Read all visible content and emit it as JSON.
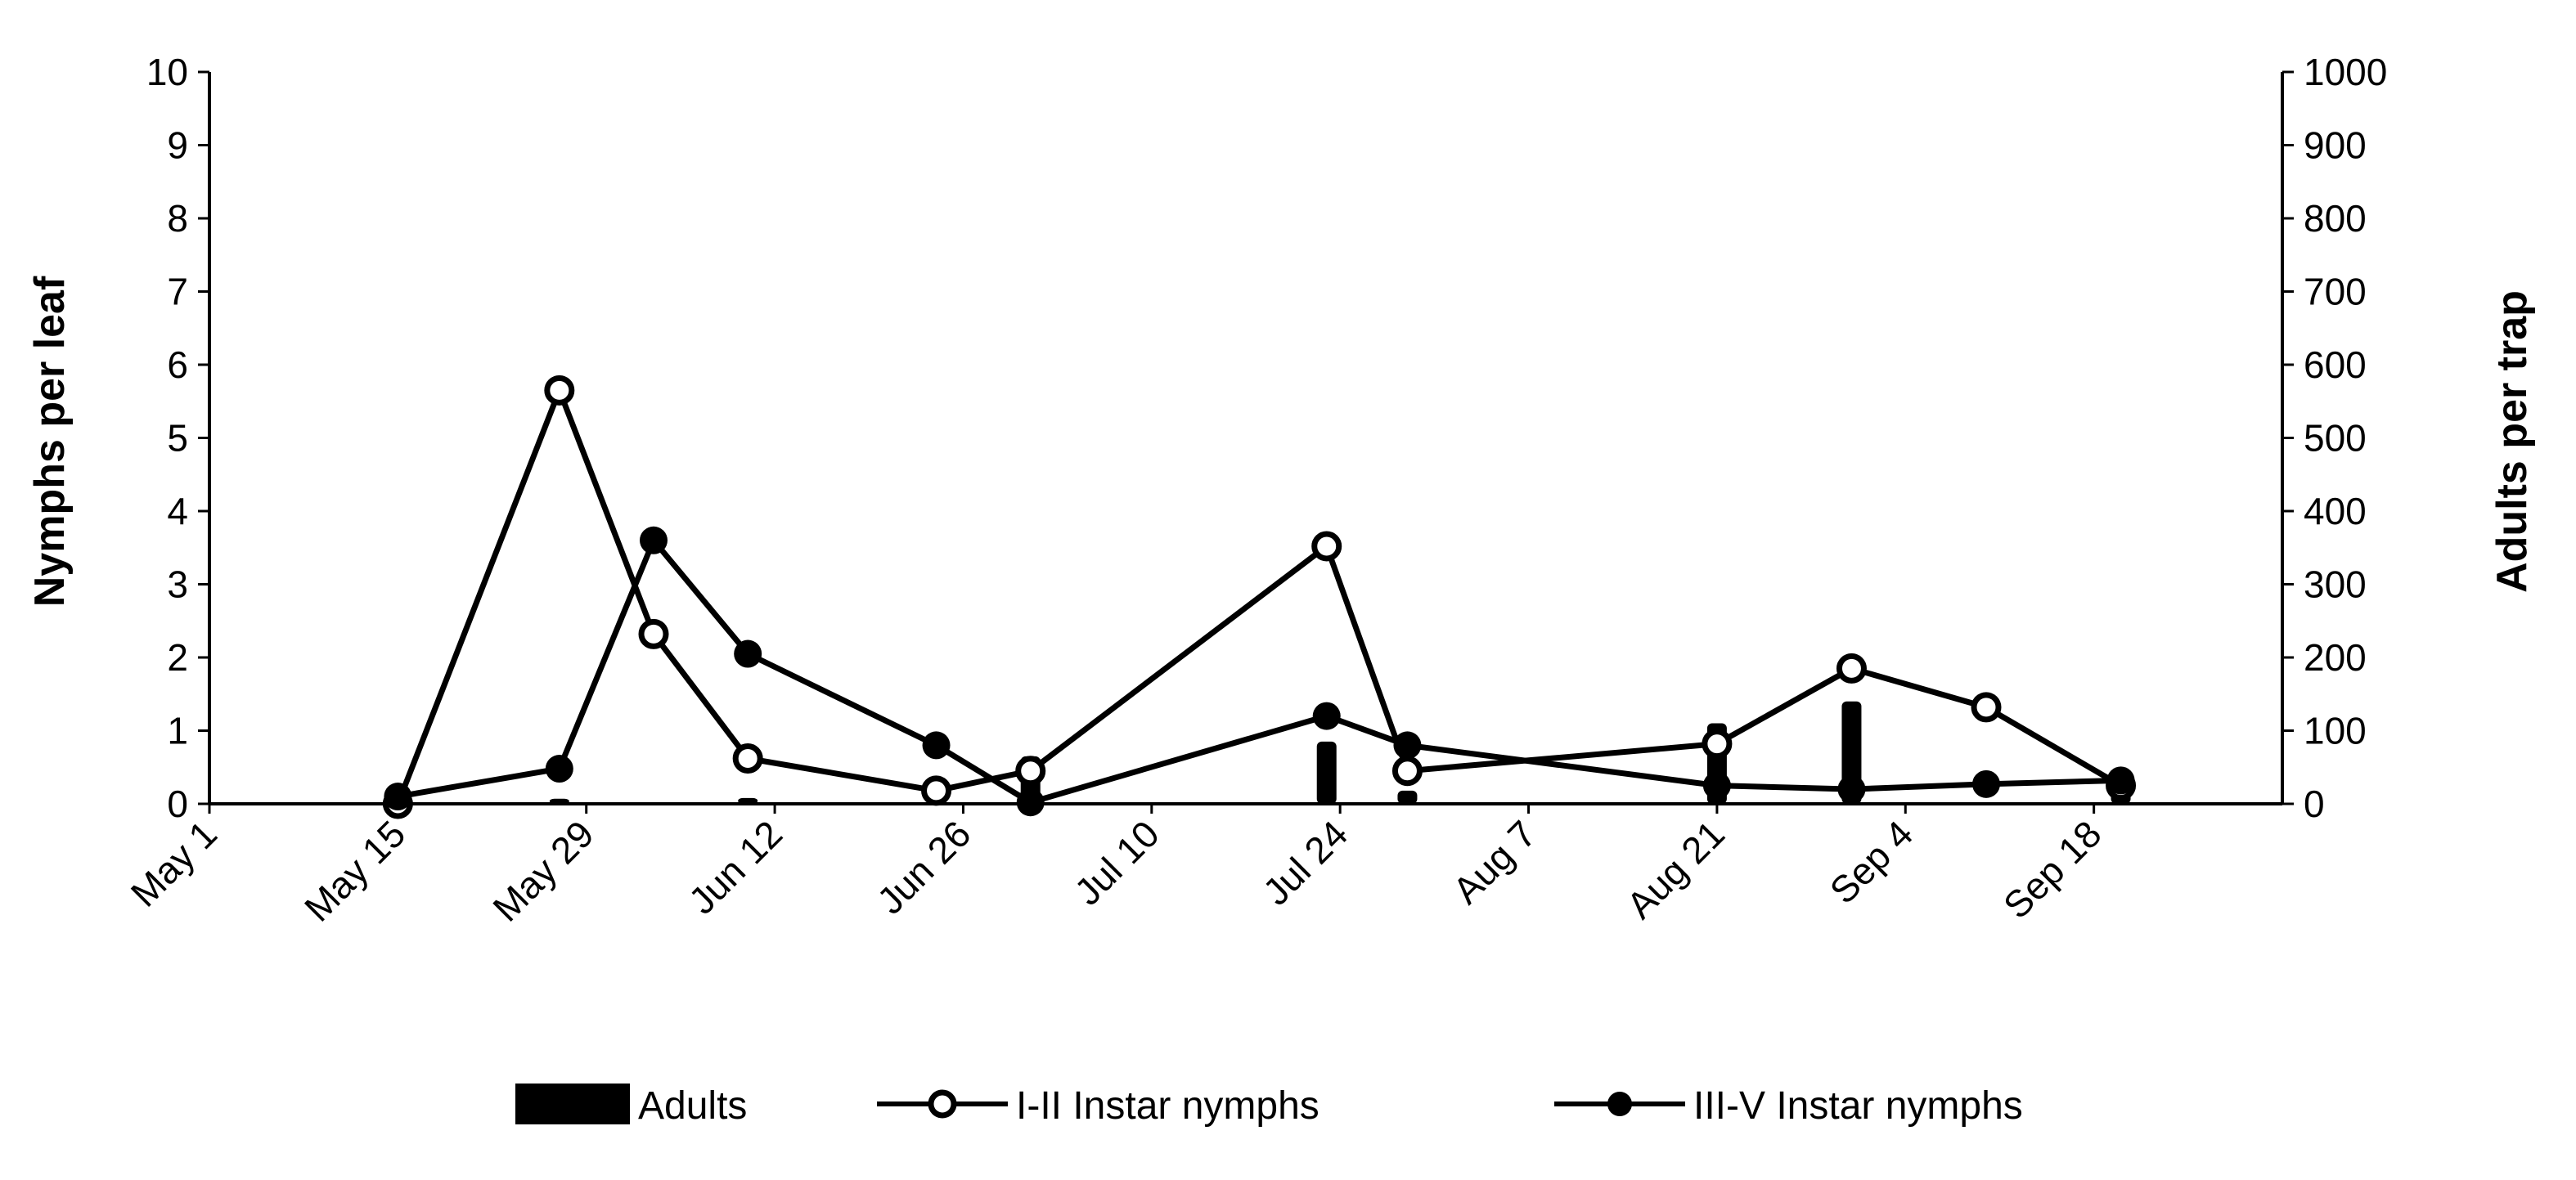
{
  "chart_data": {
    "type": "line",
    "x_tick_labels": [
      "May 1",
      "May 15",
      "May 29",
      "Jun 12",
      "Jun 26",
      "Jul 10",
      "Jul 24",
      "Aug 7",
      "Aug 21",
      "Sep 4",
      "Sep 18"
    ],
    "x_ticks_day_of_year": [
      121,
      135,
      149,
      163,
      177,
      191,
      205,
      219,
      233,
      247,
      261
    ],
    "xlim": [
      121,
      275
    ],
    "y_left": {
      "label": "Nymphs per leaf",
      "lim": [
        0,
        10
      ],
      "ticks": [
        0,
        1,
        2,
        3,
        4,
        5,
        6,
        7,
        8,
        9,
        10
      ]
    },
    "y_right": {
      "label": "Adults per trap",
      "lim": [
        0,
        1000
      ],
      "ticks": [
        0,
        100,
        200,
        300,
        400,
        500,
        600,
        700,
        800,
        900,
        1000
      ]
    },
    "series": [
      {
        "name": "Adults",
        "kind": "bar",
        "axis": "right",
        "color": "#000000",
        "points": [
          {
            "x": 135,
            "y": 10
          },
          {
            "x": 147,
            "y": 7
          },
          {
            "x": 154,
            "y": 2
          },
          {
            "x": 161,
            "y": 8
          },
          {
            "x": 182,
            "y": 65
          },
          {
            "x": 204,
            "y": 85
          },
          {
            "x": 210,
            "y": 18
          },
          {
            "x": 233,
            "y": 110
          },
          {
            "x": 243,
            "y": 140
          },
          {
            "x": 263,
            "y": 20
          }
        ]
      },
      {
        "name": "I-II Instar nymphs",
        "kind": "line",
        "marker": "open-circle",
        "axis": "left",
        "color": "#000000",
        "points": [
          {
            "x": 135,
            "y": 0.0
          },
          {
            "x": 147,
            "y": 5.65
          },
          {
            "x": 154,
            "y": 2.32
          },
          {
            "x": 161,
            "y": 0.62
          },
          {
            "x": 175,
            "y": 0.18
          },
          {
            "x": 182,
            "y": 0.45
          },
          {
            "x": 204,
            "y": 3.52
          },
          {
            "x": 210,
            "y": 0.45
          },
          {
            "x": 233,
            "y": 0.82
          },
          {
            "x": 243,
            "y": 1.85
          },
          {
            "x": 253,
            "y": 1.32
          },
          {
            "x": 263,
            "y": 0.25
          }
        ]
      },
      {
        "name": "III-V Instar nymphs",
        "kind": "line",
        "marker": "filled-circle",
        "axis": "left",
        "color": "#000000",
        "points": [
          {
            "x": 135,
            "y": 0.1
          },
          {
            "x": 147,
            "y": 0.48
          },
          {
            "x": 154,
            "y": 3.6
          },
          {
            "x": 161,
            "y": 2.05
          },
          {
            "x": 175,
            "y": 0.8
          },
          {
            "x": 182,
            "y": 0.02
          },
          {
            "x": 204,
            "y": 1.2
          },
          {
            "x": 210,
            "y": 0.8
          },
          {
            "x": 233,
            "y": 0.25
          },
          {
            "x": 243,
            "y": 0.2
          },
          {
            "x": 253,
            "y": 0.27
          },
          {
            "x": 263,
            "y": 0.32
          }
        ]
      }
    ],
    "legend": [
      "Adults",
      "I-II Instar nymphs",
      "III-V Instar nymphs"
    ],
    "legend_position": "bottom-center"
  }
}
